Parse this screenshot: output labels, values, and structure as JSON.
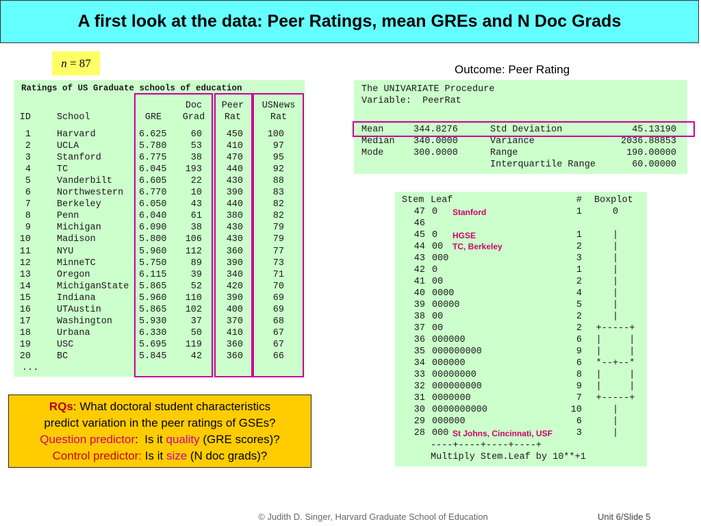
{
  "title": "A first look at the data: Peer Ratings, mean GREs and N Doc Grads",
  "sample_size": {
    "symbol": "n",
    "text": "= 87"
  },
  "outcome_label": "Outcome: Peer Rating",
  "table": {
    "caption": "Ratings of US Graduate schools of education",
    "columns": [
      [
        "ID"
      ],
      [
        "School"
      ],
      [
        "GRE"
      ],
      [
        "Doc",
        "Grad"
      ],
      [
        "Peer",
        "Rat"
      ],
      [
        "USNews",
        "Rat"
      ]
    ],
    "rows": [
      [
        1,
        "Harvard",
        "6.625",
        60,
        450,
        100
      ],
      [
        2,
        "UCLA",
        "5.780",
        53,
        410,
        97
      ],
      [
        3,
        "Stanford",
        "6.775",
        38,
        470,
        95
      ],
      [
        4,
        "TC",
        "6.045",
        193,
        440,
        92
      ],
      [
        5,
        "Vanderbilt",
        "6.605",
        22,
        430,
        88
      ],
      [
        6,
        "Northwestern",
        "6.770",
        10,
        390,
        83
      ],
      [
        7,
        "Berkeley",
        "6.050",
        43,
        440,
        82
      ],
      [
        8,
        "Penn",
        "6.040",
        61,
        380,
        82
      ],
      [
        9,
        "Michigan",
        "6.090",
        38,
        430,
        79
      ],
      [
        10,
        "Madison",
        "5.800",
        106,
        430,
        79
      ],
      [
        11,
        "NYU",
        "5.960",
        112,
        360,
        77
      ],
      [
        12,
        "MinneTC",
        "5.750",
        89,
        390,
        73
      ],
      [
        13,
        "Oregon",
        "6.115",
        39,
        340,
        71
      ],
      [
        14,
        "MichiganState",
        "5.865",
        52,
        420,
        70
      ],
      [
        15,
        "Indiana",
        "5.960",
        110,
        390,
        69
      ],
      [
        16,
        "UTAustin",
        "5.865",
        102,
        400,
        69
      ],
      [
        17,
        "Washington",
        "5.930",
        37,
        370,
        68
      ],
      [
        18,
        "Urbana",
        "6.330",
        50,
        410,
        67
      ],
      [
        19,
        "USC",
        "5.695",
        119,
        360,
        67
      ],
      [
        20,
        "BC",
        "5.845",
        42,
        360,
        66
      ]
    ],
    "ellipsis": "..."
  },
  "univariate": {
    "lines": [
      "The UNIVARIATE Procedure",
      "Variable:  PeerRat"
    ],
    "stats": [
      [
        "Mean",
        "344.8276",
        "Std Deviation",
        "45.13190"
      ],
      [
        "Median",
        "340.0000",
        "Variance",
        "2036.88853"
      ],
      [
        "Mode",
        "300.0000",
        "Range",
        "190.00000"
      ],
      [
        null,
        null,
        "Interquartile Range",
        "60.00000"
      ]
    ]
  },
  "stem_leaf": {
    "header": [
      "Stem",
      "Leaf",
      "#",
      "Boxplot"
    ],
    "rows": [
      {
        "stem": 47,
        "leaf": "0",
        "count": 1,
        "boxplot": "0",
        "note": "Stanford"
      },
      {
        "stem": 46
      },
      {
        "stem": 45,
        "leaf": "0",
        "count": 1,
        "boxplot": "|",
        "note": "HGSE"
      },
      {
        "stem": 44,
        "leaf": "00",
        "count": 2,
        "boxplot": "|",
        "note": "TC, Berkeley"
      },
      {
        "stem": 43,
        "leaf": "000",
        "count": 3,
        "boxplot": "|"
      },
      {
        "stem": 42,
        "leaf": "0",
        "count": 1,
        "boxplot": "|"
      },
      {
        "stem": 41,
        "leaf": "00",
        "count": 2,
        "boxplot": "|"
      },
      {
        "stem": 40,
        "leaf": "0000",
        "count": 4,
        "boxplot": "|"
      },
      {
        "stem": 39,
        "leaf": "00000",
        "count": 5,
        "boxplot": "|"
      },
      {
        "stem": 38,
        "leaf": "00",
        "count": 2,
        "boxplot": "|"
      },
      {
        "stem": 37,
        "leaf": "00",
        "count": 2,
        "boxplot": "+-----+"
      },
      {
        "stem": 36,
        "leaf": "000000",
        "count": 6,
        "boxplot": "|     |"
      },
      {
        "stem": 35,
        "leaf": "000000000",
        "count": 9,
        "boxplot": "|     |"
      },
      {
        "stem": 34,
        "leaf": "000000",
        "count": 6,
        "boxplot": "*--+--*"
      },
      {
        "stem": 33,
        "leaf": "00000000",
        "count": 8,
        "boxplot": "|     |"
      },
      {
        "stem": 32,
        "leaf": "000000000",
        "count": 9,
        "boxplot": "|     |"
      },
      {
        "stem": 31,
        "leaf": "0000000",
        "count": 7,
        "boxplot": "+-----+"
      },
      {
        "stem": 30,
        "leaf": "0000000000",
        "count": 10,
        "boxplot": "|"
      },
      {
        "stem": 29,
        "leaf": "000000",
        "count": 6,
        "boxplot": "|"
      },
      {
        "stem": 28,
        "leaf": "000",
        "count": 3,
        "boxplot": "|",
        "note": "St Johns, Cincinnati, USF"
      }
    ],
    "axis": "----+----+----+----+",
    "footnote": "Multiply Stem.Leaf by 10**+1"
  },
  "research_questions": {
    "lines": [
      [
        "RQs",
        ": What doctoral student characteristics"
      ],
      [
        "predict variation in the peer ratings of GSEs?"
      ],
      [
        "Question predictor",
        ":  Is it ",
        "quality",
        " (GRE scores)?"
      ],
      [
        "Control predictor:",
        " Is it ",
        "size",
        " (N doc grads)?"
      ]
    ]
  },
  "footer": {
    "credit": "© Judith D. Singer, Harvard Graduate School of Education",
    "slide": "Unit 6/Slide 5"
  }
}
